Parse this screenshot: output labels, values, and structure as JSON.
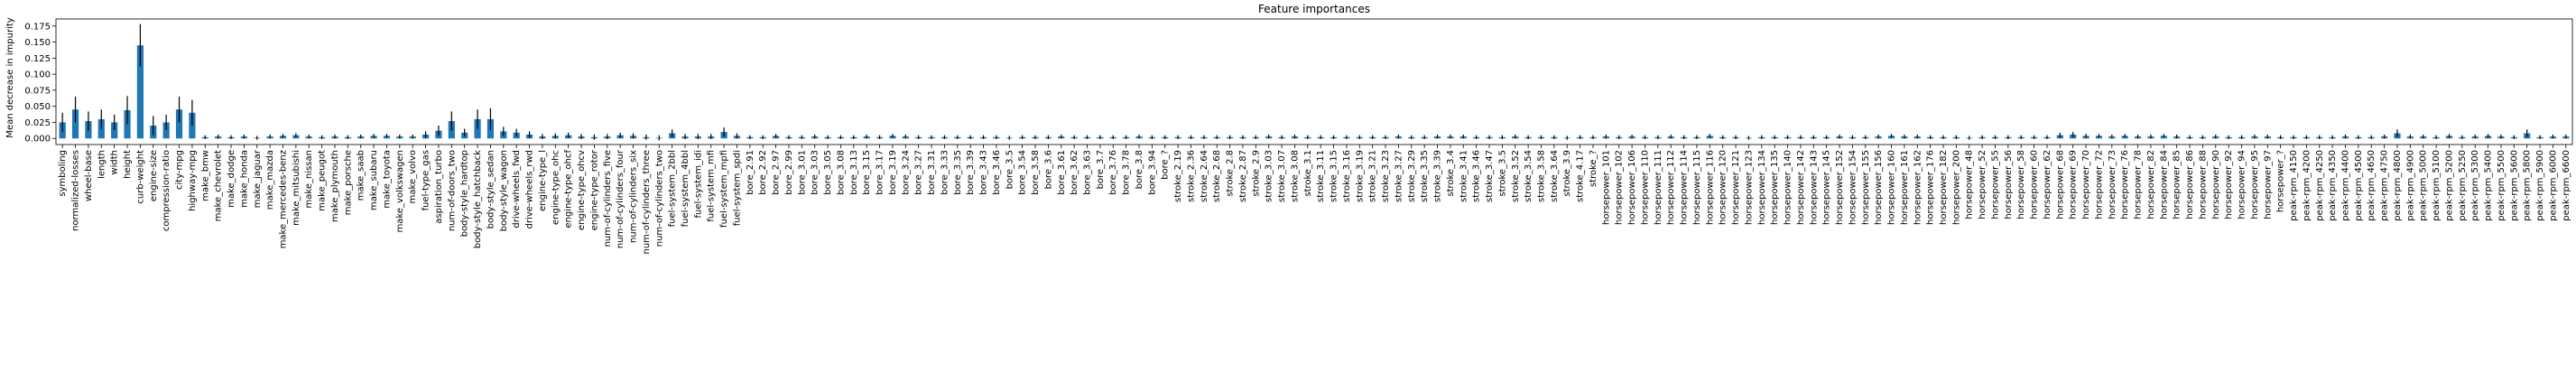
{
  "chart_data": {
    "type": "bar",
    "title": "Feature importances",
    "y_label": "Mean decrease in impurity",
    "color": "#1f77b4",
    "error_color": "#000000",
    "ylim": [
      -0.0095,
      0.186
    ],
    "yticks": [
      {
        "value": 0,
        "label": "0.000"
      },
      {
        "value": 0.025,
        "label": "0.025"
      },
      {
        "value": 0.05,
        "label": "0.050"
      },
      {
        "value": 0.075,
        "label": "0.075"
      },
      {
        "value": 0.1,
        "label": "0.100"
      },
      {
        "value": 0.125,
        "label": "0.125"
      },
      {
        "value": 0.15,
        "label": "0.150"
      },
      {
        "value": 0.175,
        "label": "0.175"
      }
    ],
    "categories": [
      "symboling",
      "normalized-losses",
      "wheel-base",
      "length",
      "width",
      "height",
      "curb-weight",
      "engine-size",
      "compression-ratio",
      "city-mpg",
      "highway-mpg",
      "make_bmw",
      "make_chevrolet",
      "make_dodge",
      "make_honda",
      "make_jaguar",
      "make_mazda",
      "make_mercedes-benz",
      "make_mitsubishi",
      "make_nissan",
      "make_peugot",
      "make_plymouth",
      "make_porsche",
      "make_saab",
      "make_subaru",
      "make_toyota",
      "make_volkswagen",
      "make_volvo",
      "fuel-type_gas",
      "aspiration_turbo",
      "num-of-doors_two",
      "body-style_hardtop",
      "body-style_hatchback",
      "body-style_sedan",
      "body-style_wagon",
      "drive-wheels_fwd",
      "drive-wheels_rwd",
      "engine-type_l",
      "engine-type_ohc",
      "engine-type_ohcf",
      "engine-type_ohcv",
      "engine-type_rotor",
      "num-of-cylinders_five",
      "num-of-cylinders_four",
      "num-of-cylinders_six",
      "num-of-cylinders_three",
      "num-of-cylinders_two",
      "fuel-system_2bbl",
      "fuel-system_4bbl",
      "fuel-system_idi",
      "fuel-system_mfi",
      "fuel-system_mpfi",
      "fuel-system_spdi",
      "bore_2.91",
      "bore_2.92",
      "bore_2.97",
      "bore_2.99",
      "bore_3.01",
      "bore_3.03",
      "bore_3.05",
      "bore_3.08",
      "bore_3.13",
      "bore_3.15",
      "bore_3.17",
      "bore_3.19",
      "bore_3.24",
      "bore_3.27",
      "bore_3.31",
      "bore_3.33",
      "bore_3.35",
      "bore_3.39",
      "bore_3.43",
      "bore_3.46",
      "bore_3.5",
      "bore_3.54",
      "bore_3.58",
      "bore_3.6",
      "bore_3.61",
      "bore_3.62",
      "bore_3.63",
      "bore_3.7",
      "bore_3.76",
      "bore_3.78",
      "bore_3.8",
      "bore_3.94",
      "bore_?",
      "stroke_2.19",
      "stroke_2.36",
      "stroke_2.64",
      "stroke_2.68",
      "stroke_2.8",
      "stroke_2.87",
      "stroke_2.9",
      "stroke_3.03",
      "stroke_3.07",
      "stroke_3.08",
      "stroke_3.1",
      "stroke_3.11",
      "stroke_3.15",
      "stroke_3.16",
      "stroke_3.19",
      "stroke_3.21",
      "stroke_3.23",
      "stroke_3.27",
      "stroke_3.29",
      "stroke_3.35",
      "stroke_3.39",
      "stroke_3.4",
      "stroke_3.41",
      "stroke_3.46",
      "stroke_3.47",
      "stroke_3.5",
      "stroke_3.52",
      "stroke_3.54",
      "stroke_3.58",
      "stroke_3.64",
      "stroke_3.9",
      "stroke_4.17",
      "stroke_?",
      "horsepower_101",
      "horsepower_102",
      "horsepower_106",
      "horsepower_110",
      "horsepower_111",
      "horsepower_112",
      "horsepower_114",
      "horsepower_115",
      "horsepower_116",
      "horsepower_120",
      "horsepower_121",
      "horsepower_123",
      "horsepower_134",
      "horsepower_135",
      "horsepower_140",
      "horsepower_142",
      "horsepower_143",
      "horsepower_145",
      "horsepower_152",
      "horsepower_154",
      "horsepower_155",
      "horsepower_156",
      "horsepower_160",
      "horsepower_161",
      "horsepower_162",
      "horsepower_176",
      "horsepower_182",
      "horsepower_200",
      "horsepower_48",
      "horsepower_52",
      "horsepower_55",
      "horsepower_56",
      "horsepower_58",
      "horsepower_60",
      "horsepower_62",
      "horsepower_68",
      "horsepower_69",
      "horsepower_70",
      "horsepower_72",
      "horsepower_73",
      "horsepower_76",
      "horsepower_78",
      "horsepower_82",
      "horsepower_84",
      "horsepower_85",
      "horsepower_86",
      "horsepower_88",
      "horsepower_90",
      "horsepower_92",
      "horsepower_94",
      "horsepower_95",
      "horsepower_97",
      "horsepower_?",
      "peak-rpm_4150",
      "peak-rpm_4200",
      "peak-rpm_4250",
      "peak-rpm_4350",
      "peak-rpm_4400",
      "peak-rpm_4500",
      "peak-rpm_4650",
      "peak-rpm_4750",
      "peak-rpm_4800",
      "peak-rpm_4900",
      "peak-rpm_5000",
      "peak-rpm_5100",
      "peak-rpm_5200",
      "peak-rpm_5250",
      "peak-rpm_5300",
      "peak-rpm_5400",
      "peak-rpm_5500",
      "peak-rpm_5600",
      "peak-rpm_5800",
      "peak-rpm_5900",
      "peak-rpm_6000",
      "peak-rpm_6600"
    ],
    "values": [
      0.025,
      0.045,
      0.027,
      0.03,
      0.025,
      0.044,
      0.145,
      0.02,
      0.025,
      0.045,
      0.04,
      0.002,
      0.003,
      0.002,
      0.003,
      0.001,
      0.003,
      0.004,
      0.005,
      0.003,
      0.002,
      0.003,
      0.002,
      0.003,
      0.004,
      0.004,
      0.003,
      0.003,
      0.006,
      0.012,
      0.027,
      0.009,
      0.03,
      0.03,
      0.011,
      0.009,
      0.006,
      0.003,
      0.004,
      0.005,
      0.003,
      0.002,
      0.003,
      0.005,
      0.004,
      0.002,
      0.001,
      0.008,
      0.003,
      0.003,
      0.003,
      0.01,
      0.004,
      0.002,
      0.002,
      0.004,
      0.002,
      0.002,
      0.003,
      0.002,
      0.002,
      0.002,
      0.003,
      0.002,
      0.004,
      0.003,
      0.002,
      0.002,
      0.002,
      0.002,
      0.002,
      0.002,
      0.002,
      0.001,
      0.002,
      0.002,
      0.002,
      0.003,
      0.002,
      0.002,
      0.002,
      0.002,
      0.002,
      0.003,
      0.002,
      0.002,
      0.002,
      0.002,
      0.002,
      0.002,
      0.002,
      0.002,
      0.002,
      0.003,
      0.002,
      0.003,
      0.002,
      0.002,
      0.002,
      0.002,
      0.002,
      0.002,
      0.002,
      0.003,
      0.002,
      0.002,
      0.003,
      0.003,
      0.003,
      0.002,
      0.002,
      0.002,
      0.003,
      0.002,
      0.002,
      0.002,
      0.001,
      0.002,
      0.002,
      0.003,
      0.002,
      0.003,
      0.002,
      0.002,
      0.003,
      0.002,
      0.002,
      0.004,
      0.002,
      0.002,
      0.001,
      0.002,
      0.002,
      0.002,
      0.002,
      0.002,
      0.002,
      0.003,
      0.002,
      0.002,
      0.003,
      0.004,
      0.003,
      0.003,
      0.002,
      0.002,
      0.002,
      0.001,
      0.002,
      0.002,
      0.002,
      0.002,
      0.002,
      0.002,
      0.005,
      0.006,
      0.004,
      0.004,
      0.003,
      0.004,
      0.003,
      0.003,
      0.004,
      0.003,
      0.002,
      0.002,
      0.003,
      0.002,
      0.002,
      0.003,
      0.003,
      0.002,
      0.002,
      0.002,
      0.002,
      0.002,
      0.003,
      0.002,
      0.002,
      0.003,
      0.008,
      0.003,
      0.003,
      0.002,
      0.004,
      0.002,
      0.003,
      0.004,
      0.003,
      0.002,
      0.008,
      0.002,
      0.003,
      0.003
    ],
    "errors": [
      0.015,
      0.02,
      0.015,
      0.015,
      0.012,
      0.022,
      0.033,
      0.015,
      0.012,
      0.02,
      0.02,
      0.003,
      0.003,
      0.003,
      0.003,
      0.003,
      0.003,
      0.003,
      0.003,
      0.003,
      0.003,
      0.003,
      0.003,
      0.003,
      0.003,
      0.003,
      0.003,
      0.003,
      0.005,
      0.008,
      0.015,
      0.006,
      0.015,
      0.017,
      0.007,
      0.006,
      0.005,
      0.004,
      0.004,
      0.004,
      0.004,
      0.004,
      0.004,
      0.004,
      0.004,
      0.004,
      0.004,
      0.006,
      0.004,
      0.004,
      0.004,
      0.007,
      0.004,
      0.003,
      0.003,
      0.003,
      0.003,
      0.003,
      0.003,
      0.003,
      0.003,
      0.003,
      0.003,
      0.003,
      0.003,
      0.003,
      0.003,
      0.003,
      0.003,
      0.003,
      0.003,
      0.003,
      0.003,
      0.003,
      0.003,
      0.003,
      0.003,
      0.003,
      0.003,
      0.003,
      0.003,
      0.003,
      0.003,
      0.003,
      0.003,
      0.003,
      0.003,
      0.003,
      0.003,
      0.003,
      0.003,
      0.003,
      0.003,
      0.003,
      0.003,
      0.003,
      0.003,
      0.003,
      0.003,
      0.003,
      0.003,
      0.003,
      0.003,
      0.003,
      0.003,
      0.003,
      0.003,
      0.003,
      0.003,
      0.003,
      0.003,
      0.003,
      0.003,
      0.003,
      0.003,
      0.003,
      0.003,
      0.003,
      0.003,
      0.003,
      0.003,
      0.003,
      0.003,
      0.003,
      0.003,
      0.003,
      0.003,
      0.003,
      0.003,
      0.003,
      0.003,
      0.003,
      0.003,
      0.003,
      0.003,
      0.003,
      0.003,
      0.003,
      0.003,
      0.003,
      0.003,
      0.003,
      0.003,
      0.003,
      0.003,
      0.003,
      0.003,
      0.003,
      0.003,
      0.003,
      0.003,
      0.003,
      0.003,
      0.003,
      0.004,
      0.004,
      0.003,
      0.003,
      0.003,
      0.003,
      0.003,
      0.003,
      0.003,
      0.003,
      0.003,
      0.003,
      0.003,
      0.003,
      0.003,
      0.003,
      0.003,
      0.003,
      0.003,
      0.003,
      0.003,
      0.003,
      0.003,
      0.003,
      0.003,
      0.003,
      0.006,
      0.003,
      0.003,
      0.003,
      0.003,
      0.003,
      0.003,
      0.003,
      0.003,
      0.003,
      0.006,
      0.003,
      0.003,
      0.003
    ]
  }
}
